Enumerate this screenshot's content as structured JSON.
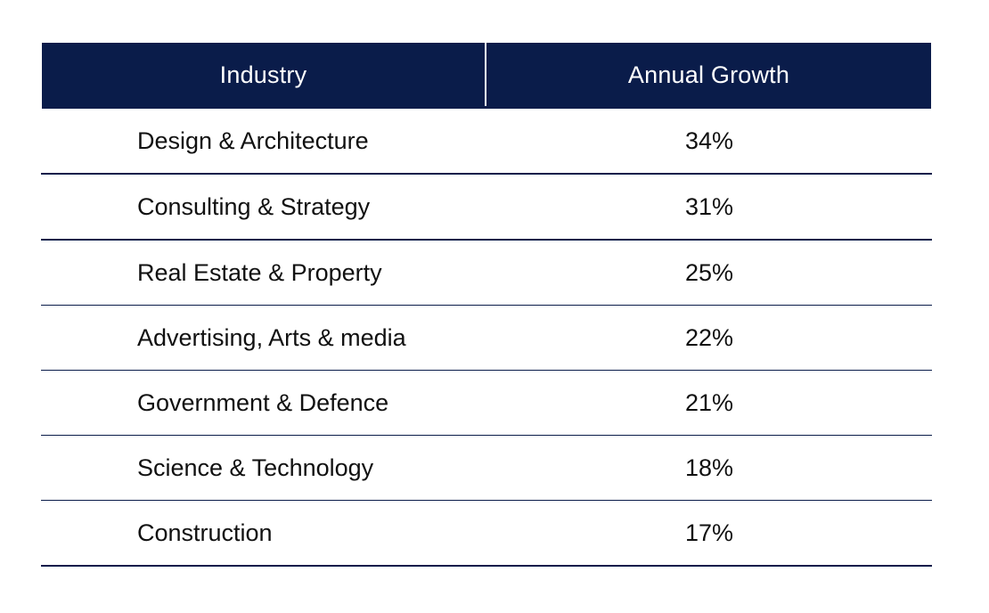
{
  "table": {
    "headers": [
      "Industry",
      "Annual Growth"
    ],
    "accent_color": "#0a1c4a",
    "rows": [
      {
        "industry": "Design & Architecture",
        "growth": "34%"
      },
      {
        "industry": "Consulting & Strategy",
        "growth": "31%"
      },
      {
        "industry": "Real Estate & Property",
        "growth": "25%"
      },
      {
        "industry": "Advertising, Arts & media",
        "growth": "22%"
      },
      {
        "industry": "Government & Defence",
        "growth": "21%"
      },
      {
        "industry": "Science & Technology",
        "growth": "18%"
      },
      {
        "industry": "Construction",
        "growth": "17%"
      }
    ]
  }
}
